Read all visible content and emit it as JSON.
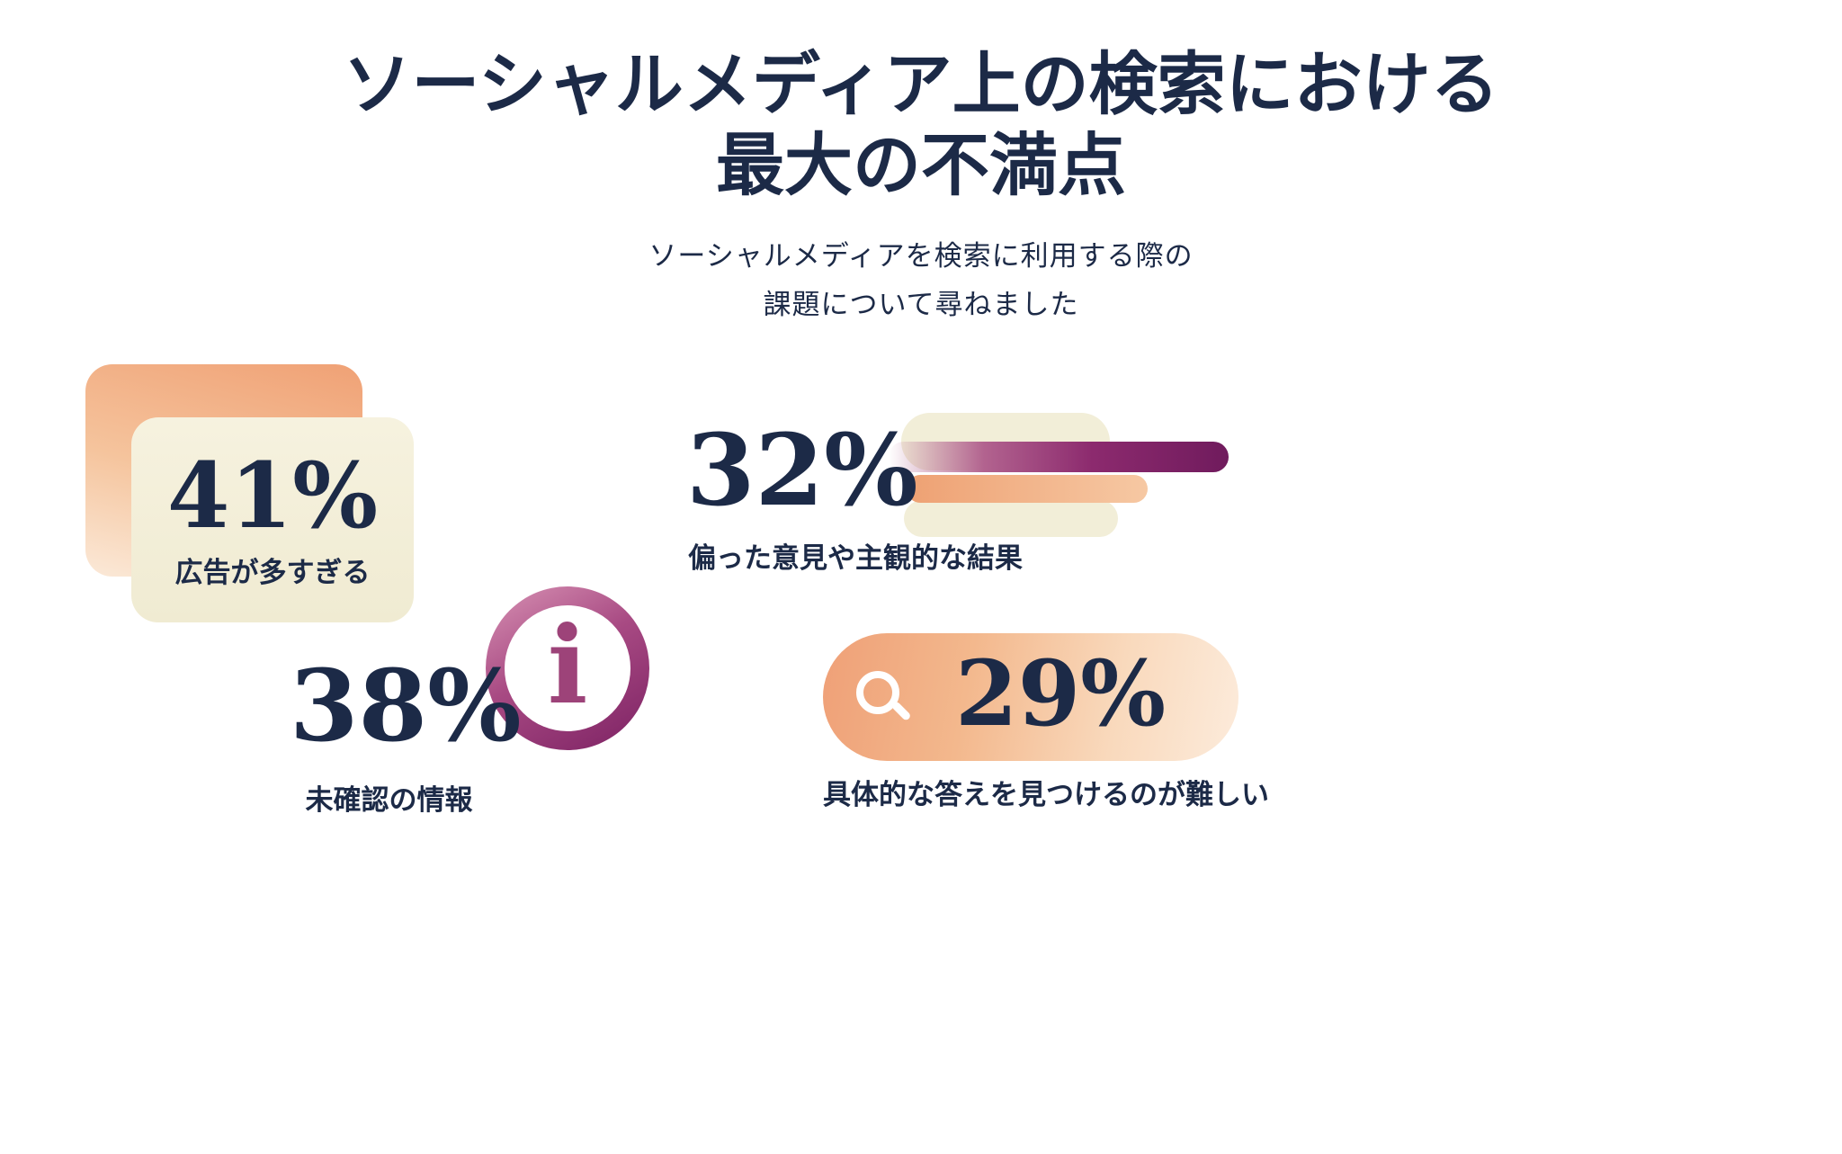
{
  "header": {
    "title_line1": "ソーシャルメディア上の検索における",
    "title_line2": "最大の不満点",
    "subtitle_line1": "ソーシャルメディアを検索に利用する際の",
    "subtitle_line2": "課題について尋ねました"
  },
  "stats": {
    "ads": {
      "value": "41%",
      "label": "広告が多すぎる"
    },
    "biased": {
      "value": "32%",
      "label": "偏った意見や主観的な結果"
    },
    "unverified": {
      "value": "38%",
      "label": "未確認の情報",
      "icon_glyph": "i"
    },
    "specific": {
      "value": "29%",
      "label": "具体的な答えを見つけるのが難しい"
    }
  },
  "chart_data": {
    "type": "bar",
    "title": "ソーシャルメディア上の検索における最大の不満点",
    "subtitle": "ソーシャルメディアを検索に利用する際の課題について尋ねました",
    "categories": [
      "広告が多すぎる",
      "偏った意見や主観的な結果",
      "未確認の情報",
      "具体的な答えを見つけるのが難しい"
    ],
    "values": [
      41,
      32,
      38,
      29
    ],
    "unit": "%",
    "legend": false,
    "grid": false,
    "layout": "infographic 2x2 stat callouts"
  },
  "icons": {
    "info": "info-icon",
    "search": "search-icon"
  },
  "colors": {
    "text_navy": "#1c2a47",
    "orange_dark": "#efa077",
    "orange_light": "#fcebdb",
    "cream": "#f2eed8",
    "purple_dark": "#701b5d",
    "purple_light": "#d893b4",
    "background": "#ffffff"
  }
}
